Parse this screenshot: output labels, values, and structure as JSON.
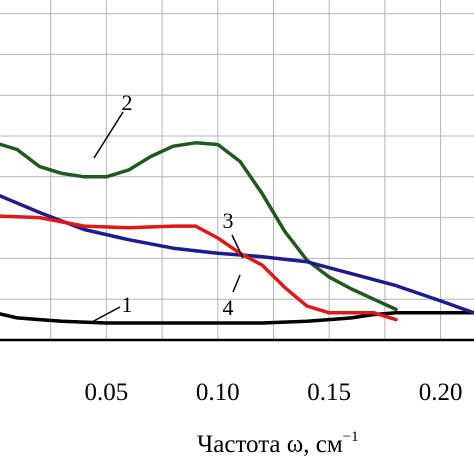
{
  "chart_data": {
    "type": "line",
    "title": "",
    "xlabel": "Частота ω, см",
    "xlabel_superscript": "−1",
    "ylabel": "",
    "xlim": [
      0.0,
      0.215
    ],
    "ylim": [
      0,
      10
    ],
    "grid": true,
    "x_ticks": [
      {
        "value": 0.05,
        "label": "0.05"
      },
      {
        "value": 0.1,
        "label": "0.10"
      },
      {
        "value": 0.15,
        "label": "0.15"
      },
      {
        "value": 0.2,
        "label": "0.20"
      }
    ],
    "series": [
      {
        "name": "1",
        "color": "#000000",
        "points": [
          [
            0.0,
            0.8
          ],
          [
            0.01,
            0.65
          ],
          [
            0.02,
            0.6
          ],
          [
            0.03,
            0.55
          ],
          [
            0.05,
            0.5
          ],
          [
            0.07,
            0.5
          ],
          [
            0.09,
            0.5
          ],
          [
            0.1,
            0.5
          ],
          [
            0.12,
            0.5
          ],
          [
            0.14,
            0.55
          ],
          [
            0.15,
            0.6
          ],
          [
            0.16,
            0.65
          ],
          [
            0.17,
            0.75
          ],
          [
            0.18,
            0.8
          ],
          [
            0.19,
            0.8
          ],
          [
            0.2,
            0.8
          ],
          [
            0.215,
            0.8
          ]
        ]
      },
      {
        "name": "2",
        "color": "#1e5a1e",
        "points": [
          [
            0.0,
            5.8
          ],
          [
            0.01,
            5.6
          ],
          [
            0.02,
            5.1
          ],
          [
            0.03,
            4.9
          ],
          [
            0.04,
            4.8
          ],
          [
            0.05,
            4.8
          ],
          [
            0.06,
            5.0
          ],
          [
            0.07,
            5.4
          ],
          [
            0.08,
            5.7
          ],
          [
            0.09,
            5.8
          ],
          [
            0.1,
            5.75
          ],
          [
            0.11,
            5.25
          ],
          [
            0.12,
            4.3
          ],
          [
            0.13,
            3.2
          ],
          [
            0.14,
            2.35
          ],
          [
            0.15,
            1.85
          ],
          [
            0.16,
            1.5
          ],
          [
            0.17,
            1.2
          ],
          [
            0.18,
            0.9
          ]
        ]
      },
      {
        "name": "3",
        "color": "#1c1c8c",
        "points": [
          [
            0.0,
            4.3
          ],
          [
            0.02,
            3.75
          ],
          [
            0.04,
            3.25
          ],
          [
            0.06,
            2.95
          ],
          [
            0.08,
            2.7
          ],
          [
            0.1,
            2.55
          ],
          [
            0.12,
            2.45
          ],
          [
            0.14,
            2.3
          ],
          [
            0.16,
            1.95
          ],
          [
            0.18,
            1.6
          ],
          [
            0.2,
            1.15
          ],
          [
            0.215,
            0.8
          ]
        ]
      },
      {
        "name": "4",
        "color": "#e01818",
        "points": [
          [
            0.0,
            3.65
          ],
          [
            0.02,
            3.6
          ],
          [
            0.04,
            3.35
          ],
          [
            0.06,
            3.3
          ],
          [
            0.08,
            3.35
          ],
          [
            0.09,
            3.35
          ],
          [
            0.1,
            3.0
          ],
          [
            0.11,
            2.55
          ],
          [
            0.12,
            2.2
          ],
          [
            0.13,
            1.55
          ],
          [
            0.14,
            1.0
          ],
          [
            0.15,
            0.8
          ],
          [
            0.16,
            0.8
          ],
          [
            0.17,
            0.8
          ],
          [
            0.18,
            0.6
          ]
        ]
      }
    ],
    "annotations": [
      {
        "text": "1",
        "series": "1"
      },
      {
        "text": "2",
        "series": "2"
      },
      {
        "text": "3",
        "series": "3"
      },
      {
        "text": "4",
        "series": "4"
      }
    ]
  }
}
